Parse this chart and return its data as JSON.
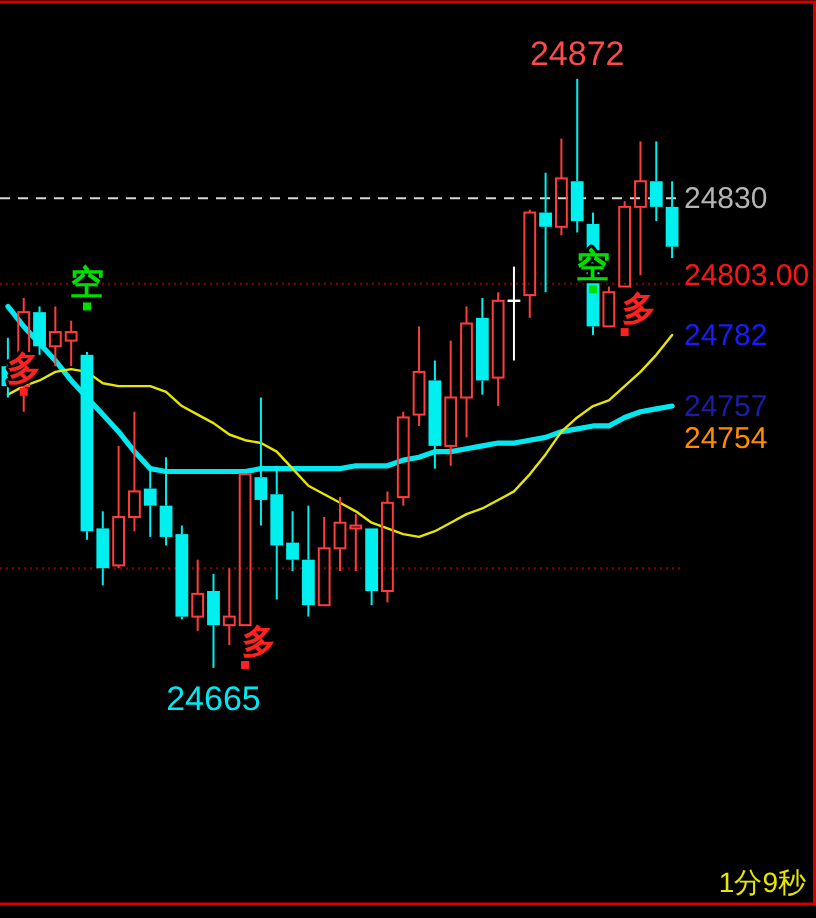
{
  "chart_data": {
    "type": "candlestick",
    "categories": [
      null,
      null,
      null,
      null,
      null,
      null,
      null,
      null,
      null,
      null,
      null,
      null,
      null,
      null,
      null,
      null,
      null,
      null,
      null,
      null,
      null,
      null,
      null,
      null,
      null,
      null,
      null,
      null,
      null,
      null,
      null,
      null,
      null,
      null,
      null,
      null,
      null,
      null,
      null,
      null,
      null,
      null,
      null
    ],
    "ohlc": [
      [
        24771,
        24781,
        24760,
        24764
      ],
      [
        24764,
        24795,
        24755,
        24790
      ],
      [
        24790,
        24792,
        24775,
        24778
      ],
      [
        24778,
        24792,
        24771,
        24783
      ],
      [
        24780,
        24787,
        24771,
        24783
      ],
      [
        24775,
        24776,
        24710,
        24713
      ],
      [
        24714,
        24720,
        24694,
        24700
      ],
      [
        24701,
        24743,
        24700,
        24718
      ],
      [
        24718,
        24755,
        24713,
        24727
      ],
      [
        24728,
        24736,
        24711,
        24722
      ],
      [
        24722,
        24739,
        24708,
        24711
      ],
      [
        24712,
        24715,
        24682,
        24683
      ],
      [
        24683,
        24703,
        24678,
        24691
      ],
      [
        24692,
        24698,
        24665,
        24680
      ],
      [
        24680,
        24700,
        24673,
        24683
      ],
      [
        24680,
        24733,
        24680,
        24733
      ],
      [
        24732,
        24760,
        24715,
        24724
      ],
      [
        24726,
        24736,
        24689,
        24708
      ],
      [
        24709,
        24720,
        24699,
        24703
      ],
      [
        24703,
        24722,
        24683,
        24687
      ],
      [
        24687,
        24718,
        24687,
        24707
      ],
      [
        24707,
        24725,
        24699,
        24716
      ],
      [
        24714,
        24719,
        24699,
        24715
      ],
      [
        24714,
        24714,
        24687,
        24692
      ],
      [
        24692,
        24727,
        24688,
        24723
      ],
      [
        24725,
        24755,
        24722,
        24753
      ],
      [
        24754,
        24785,
        24750,
        24769
      ],
      [
        24766,
        24773,
        24735,
        24743
      ],
      [
        24743,
        24780,
        24736,
        24760
      ],
      [
        24760,
        24792,
        24746,
        24786
      ],
      [
        24788,
        24795,
        24761,
        24766
      ],
      [
        24767,
        24797,
        24757,
        24794
      ],
      [
        24794,
        24806,
        24773,
        24794
      ],
      [
        24796,
        24826,
        24788,
        24825
      ],
      [
        24825,
        24839,
        24797,
        24820
      ],
      [
        24820,
        24851,
        24817,
        24837
      ],
      [
        24836,
        24872,
        24818,
        24822
      ],
      [
        24821,
        24825,
        24782,
        24785
      ],
      [
        24785,
        24799,
        24785,
        24797
      ],
      [
        24799,
        24829,
        24799,
        24827
      ],
      [
        24827,
        24850,
        24803,
        24836
      ],
      [
        24836,
        24850,
        24822,
        24827
      ],
      [
        24827,
        24836,
        24809,
        24813
      ]
    ],
    "colors": [
      "#00f0f0",
      "#ff3c3c",
      "#00f0f0",
      "#ff3c3c",
      "#ff3c3c",
      "#00f0f0",
      "#00f0f0",
      "#ff3c3c",
      "#ff3c3c",
      "#00f0f0",
      "#00f0f0",
      "#00f0f0",
      "#ff3c3c",
      "#00f0f0",
      "#ff3c3c",
      "#ff3c3c",
      "#00f0f0",
      "#00f0f0",
      "#00f0f0",
      "#00f0f0",
      "#ff3c3c",
      "#ff3c3c",
      "#ff3c3c",
      "#00f0f0",
      "#ff3c3c",
      "#ff3c3c",
      "#ff3c3c",
      "#00f0f0",
      "#ff3c3c",
      "#ff3c3c",
      "#00f0f0",
      "#ff3c3c",
      "#ffffff",
      "#ff3c3c",
      "#00f0f0",
      "#ff3c3c",
      "#00f0f0",
      "#00f0f0",
      "#ff3c3c",
      "#ff3c3c",
      "#ff3c3c",
      "#00f0f0",
      "#00f0f0"
    ],
    "series": [
      {
        "type": "line",
        "color": "#00e8f0",
        "values": [
          24792,
          24785,
          24779,
          24773,
          24766,
          24760,
          24754,
          24748,
          24741,
          24735,
          24734,
          24734,
          24734,
          24734,
          24734,
          24734,
          24735,
          24735,
          24735,
          24735,
          24735,
          24735,
          24736,
          24736,
          24736,
          24738,
          24739,
          24741,
          24741,
          24742,
          24743,
          24744,
          24744,
          24745,
          24746,
          24748,
          24749,
          24750,
          24750,
          24753,
          24755,
          24756,
          24757
        ]
      },
      {
        "type": "line",
        "color": "#e6e600",
        "values": [
          24761,
          24764,
          24766,
          24769,
          24770,
          24769,
          24765,
          24764,
          24764,
          24764,
          24762,
          24757,
          24754,
          24751,
          24747,
          24745,
          24744,
          24741,
          24735,
          24729,
          24726,
          24723,
          24720,
          24716,
          24714,
          24712,
          24711,
          24713,
          24716,
          24719,
          24721,
          24724,
          24727,
          24733,
          24740,
          24748,
          24753,
          24757,
          24759,
          24764,
          24769,
          24775,
          24782
        ]
      },
      {
        "type": "scatter",
        "color": "#ff2020",
        "marker": "square",
        "values": [
          null,
          24762,
          null,
          null,
          null,
          null,
          null,
          null,
          null,
          null,
          null,
          null,
          null,
          null,
          null,
          24666,
          null,
          null,
          null,
          null,
          null,
          null,
          null,
          null,
          null,
          null,
          null,
          null,
          null,
          null,
          null,
          null,
          null,
          null,
          null,
          null,
          null,
          null,
          null,
          24783,
          null,
          null,
          null
        ],
        "value_labels": [
          null,
          "多",
          null,
          null,
          null,
          null,
          null,
          null,
          null,
          null,
          null,
          null,
          null,
          null,
          null,
          "多",
          null,
          null,
          null,
          null,
          null,
          null,
          null,
          null,
          null,
          null,
          null,
          null,
          null,
          null,
          null,
          null,
          null,
          null,
          null,
          null,
          null,
          null,
          null,
          "多",
          null,
          null,
          null
        ]
      },
      {
        "type": "scatter",
        "color": "#00e000",
        "marker": "square",
        "values": [
          null,
          null,
          null,
          null,
          null,
          24792,
          null,
          null,
          null,
          null,
          null,
          null,
          null,
          null,
          null,
          null,
          null,
          null,
          null,
          null,
          null,
          null,
          null,
          null,
          null,
          null,
          null,
          null,
          null,
          null,
          null,
          null,
          null,
          null,
          null,
          null,
          null,
          24798,
          null,
          null,
          null,
          null,
          null
        ],
        "value_labels": [
          null,
          null,
          null,
          null,
          null,
          "空",
          null,
          null,
          null,
          null,
          null,
          null,
          null,
          null,
          null,
          null,
          null,
          null,
          null,
          null,
          null,
          null,
          null,
          null,
          null,
          null,
          null,
          null,
          null,
          null,
          null,
          null,
          null,
          null,
          null,
          null,
          null,
          "空",
          null,
          null,
          null,
          null,
          null
        ]
      }
    ],
    "ylim": [
      24582,
      24899
    ],
    "yticks": [
      24830,
      {
        "value": 24803,
        "label": "24803.00"
      },
      24782,
      24757
    ],
    "tick_labels": "y",
    "ref_lines": [
      {
        "axis": "y",
        "value": 24830,
        "color": "#d8d8d8",
        "line_style": "dashed"
      },
      {
        "axis": "y",
        "value": 24800,
        "color": "#8b0000",
        "line_style": "dotted"
      },
      {
        "axis": "y",
        "value": 24700,
        "color": "#8b0000",
        "line_style": "dotted"
      }
    ],
    "annotations": [
      {
        "text": "24872",
        "y": 24872
      },
      {
        "text": "24665",
        "y": 24665
      },
      "24754",
      "1分9秒"
    ]
  }
}
